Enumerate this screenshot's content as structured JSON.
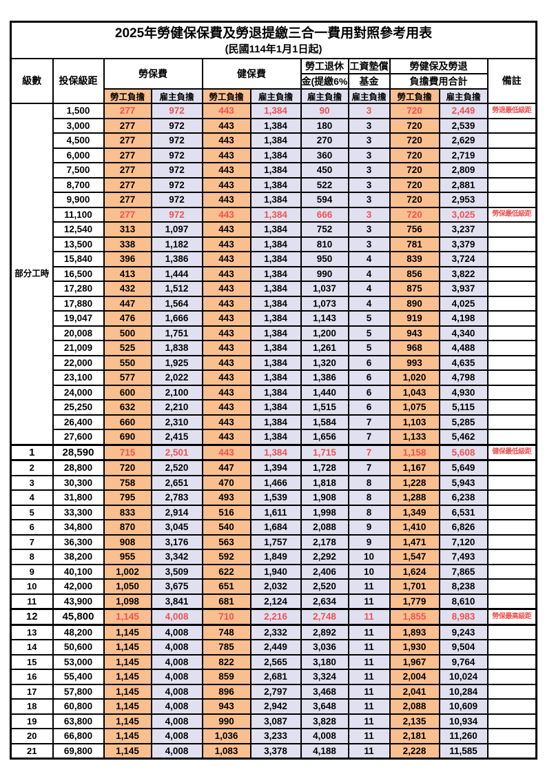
{
  "title": "2025年勞健保保費及勞退提繳三合一費用對照參考用表",
  "subtitle": "(民國114年1月1日起)",
  "columns": {
    "level": "級數",
    "bracket": "投保級距",
    "labor_fee": "勞保費",
    "health_fee": "健保費",
    "pension": [
      "勞工退休",
      "金(提繳6%)"
    ],
    "wage_fund": [
      "工資墊償",
      "基金"
    ],
    "total": [
      "勞健保及勞退",
      "負擔費用合計"
    ],
    "remark": "備註",
    "worker_share": "勞工負擔",
    "employer_share": "雇主負擔"
  },
  "part_time": {
    "label": "部分工時",
    "rowspan": 23
  },
  "colors": {
    "worker_bg": "#FABF8F",
    "employer_bg": "#E0E0F0",
    "highlight_red": "#EE5351"
  },
  "rows": [
    {
      "level": "",
      "bracket": "1,500",
      "values": [
        "277",
        "972",
        "443",
        "1,384",
        "90",
        "3",
        "720",
        "2,449"
      ],
      "remark": "勞退最低級距",
      "red": true,
      "big": false
    },
    {
      "level": "",
      "bracket": "3,000",
      "values": [
        "277",
        "972",
        "443",
        "1,384",
        "180",
        "3",
        "720",
        "2,539"
      ],
      "remark": "",
      "red": false,
      "big": false
    },
    {
      "level": "",
      "bracket": "4,500",
      "values": [
        "277",
        "972",
        "443",
        "1,384",
        "270",
        "3",
        "720",
        "2,629"
      ],
      "remark": "",
      "red": false,
      "big": false
    },
    {
      "level": "",
      "bracket": "6,000",
      "values": [
        "277",
        "972",
        "443",
        "1,384",
        "360",
        "3",
        "720",
        "2,719"
      ],
      "remark": "",
      "red": false,
      "big": false
    },
    {
      "level": "",
      "bracket": "7,500",
      "values": [
        "277",
        "972",
        "443",
        "1,384",
        "450",
        "3",
        "720",
        "2,809"
      ],
      "remark": "",
      "red": false,
      "big": false
    },
    {
      "level": "",
      "bracket": "8,700",
      "values": [
        "277",
        "972",
        "443",
        "1,384",
        "522",
        "3",
        "720",
        "2,881"
      ],
      "remark": "",
      "red": false,
      "big": false
    },
    {
      "level": "",
      "bracket": "9,900",
      "values": [
        "277",
        "972",
        "443",
        "1,384",
        "594",
        "3",
        "720",
        "2,953"
      ],
      "remark": "",
      "red": false,
      "big": false
    },
    {
      "level": "",
      "bracket": "11,100",
      "values": [
        "277",
        "972",
        "443",
        "1,384",
        "666",
        "3",
        "720",
        "3,025"
      ],
      "remark": "勞保最低級距",
      "red": true,
      "big": false
    },
    {
      "level": "",
      "bracket": "12,540",
      "values": [
        "313",
        "1,097",
        "443",
        "1,384",
        "752",
        "3",
        "756",
        "3,237"
      ],
      "remark": "",
      "red": false,
      "big": false
    },
    {
      "level": "",
      "bracket": "13,500",
      "values": [
        "338",
        "1,182",
        "443",
        "1,384",
        "810",
        "3",
        "781",
        "3,379"
      ],
      "remark": "",
      "red": false,
      "big": false
    },
    {
      "level": "",
      "bracket": "15,840",
      "values": [
        "396",
        "1,386",
        "443",
        "1,384",
        "950",
        "4",
        "839",
        "3,724"
      ],
      "remark": "",
      "red": false,
      "big": false
    },
    {
      "level": "",
      "bracket": "16,500",
      "values": [
        "413",
        "1,444",
        "443",
        "1,384",
        "990",
        "4",
        "856",
        "3,822"
      ],
      "remark": "",
      "red": false,
      "big": false
    },
    {
      "level": "",
      "bracket": "17,280",
      "values": [
        "432",
        "1,512",
        "443",
        "1,384",
        "1,037",
        "4",
        "875",
        "3,937"
      ],
      "remark": "",
      "red": false,
      "big": false
    },
    {
      "level": "",
      "bracket": "17,880",
      "values": [
        "447",
        "1,564",
        "443",
        "1,384",
        "1,073",
        "4",
        "890",
        "4,025"
      ],
      "remark": "",
      "red": false,
      "big": false
    },
    {
      "level": "",
      "bracket": "19,047",
      "values": [
        "476",
        "1,666",
        "443",
        "1,384",
        "1,143",
        "5",
        "919",
        "4,198"
      ],
      "remark": "",
      "red": false,
      "big": false
    },
    {
      "level": "",
      "bracket": "20,008",
      "values": [
        "500",
        "1,751",
        "443",
        "1,384",
        "1,200",
        "5",
        "943",
        "4,340"
      ],
      "remark": "",
      "red": false,
      "big": false
    },
    {
      "level": "",
      "bracket": "21,009",
      "values": [
        "525",
        "1,838",
        "443",
        "1,384",
        "1,261",
        "5",
        "968",
        "4,488"
      ],
      "remark": "",
      "red": false,
      "big": false
    },
    {
      "level": "",
      "bracket": "22,000",
      "values": [
        "550",
        "1,925",
        "443",
        "1,384",
        "1,320",
        "6",
        "993",
        "4,635"
      ],
      "remark": "",
      "red": false,
      "big": false
    },
    {
      "level": "",
      "bracket": "23,100",
      "values": [
        "577",
        "2,022",
        "443",
        "1,384",
        "1,386",
        "6",
        "1,020",
        "4,798"
      ],
      "remark": "",
      "red": false,
      "big": false
    },
    {
      "level": "",
      "bracket": "24,000",
      "values": [
        "600",
        "2,100",
        "443",
        "1,384",
        "1,440",
        "6",
        "1,043",
        "4,930"
      ],
      "remark": "",
      "red": false,
      "big": false
    },
    {
      "level": "",
      "bracket": "25,250",
      "values": [
        "632",
        "2,210",
        "443",
        "1,384",
        "1,515",
        "6",
        "1,075",
        "5,115"
      ],
      "remark": "",
      "red": false,
      "big": false
    },
    {
      "level": "",
      "bracket": "26,400",
      "values": [
        "660",
        "2,310",
        "443",
        "1,384",
        "1,584",
        "7",
        "1,103",
        "5,285"
      ],
      "remark": "",
      "red": false,
      "big": false
    },
    {
      "level": "",
      "bracket": "27,600",
      "values": [
        "690",
        "2,415",
        "443",
        "1,384",
        "1,656",
        "7",
        "1,133",
        "5,462"
      ],
      "remark": "",
      "red": false,
      "big": false
    },
    {
      "level": "1",
      "bracket": "28,590",
      "values": [
        "715",
        "2,501",
        "443",
        "1,384",
        "1,715",
        "7",
        "1,158",
        "5,608"
      ],
      "remark": "健保最低級距",
      "red": true,
      "big": true
    },
    {
      "level": "2",
      "bracket": "28,800",
      "values": [
        "720",
        "2,520",
        "447",
        "1,394",
        "1,728",
        "7",
        "1,167",
        "5,649"
      ],
      "remark": "",
      "red": false,
      "big": false
    },
    {
      "level": "3",
      "bracket": "30,300",
      "values": [
        "758",
        "2,651",
        "470",
        "1,466",
        "1,818",
        "8",
        "1,228",
        "5,943"
      ],
      "remark": "",
      "red": false,
      "big": false
    },
    {
      "level": "4",
      "bracket": "31,800",
      "values": [
        "795",
        "2,783",
        "493",
        "1,539",
        "1,908",
        "8",
        "1,288",
        "6,238"
      ],
      "remark": "",
      "red": false,
      "big": false
    },
    {
      "level": "5",
      "bracket": "33,300",
      "values": [
        "833",
        "2,914",
        "516",
        "1,611",
        "1,998",
        "8",
        "1,349",
        "6,531"
      ],
      "remark": "",
      "red": false,
      "big": false
    },
    {
      "level": "6",
      "bracket": "34,800",
      "values": [
        "870",
        "3,045",
        "540",
        "1,684",
        "2,088",
        "9",
        "1,410",
        "6,826"
      ],
      "remark": "",
      "red": false,
      "big": false
    },
    {
      "level": "7",
      "bracket": "36,300",
      "values": [
        "908",
        "3,176",
        "563",
        "1,757",
        "2,178",
        "9",
        "1,471",
        "7,120"
      ],
      "remark": "",
      "red": false,
      "big": false
    },
    {
      "level": "8",
      "bracket": "38,200",
      "values": [
        "955",
        "3,342",
        "592",
        "1,849",
        "2,292",
        "10",
        "1,547",
        "7,493"
      ],
      "remark": "",
      "red": false,
      "big": false
    },
    {
      "level": "9",
      "bracket": "40,100",
      "values": [
        "1,002",
        "3,509",
        "622",
        "1,940",
        "2,406",
        "10",
        "1,624",
        "7,865"
      ],
      "remark": "",
      "red": false,
      "big": false
    },
    {
      "level": "10",
      "bracket": "42,000",
      "values": [
        "1,050",
        "3,675",
        "651",
        "2,032",
        "2,520",
        "11",
        "1,701",
        "8,238"
      ],
      "remark": "",
      "red": false,
      "big": false
    },
    {
      "level": "11",
      "bracket": "43,900",
      "values": [
        "1,098",
        "3,841",
        "681",
        "2,124",
        "2,634",
        "11",
        "1,779",
        "8,610"
      ],
      "remark": "",
      "red": false,
      "big": false
    },
    {
      "level": "12",
      "bracket": "45,800",
      "values": [
        "1,145",
        "4,008",
        "710",
        "2,216",
        "2,748",
        "11",
        "1,855",
        "8,983"
      ],
      "remark": "勞保最高級距",
      "red": true,
      "big": true
    },
    {
      "level": "13",
      "bracket": "48,200",
      "values": [
        "1,145",
        "4,008",
        "748",
        "2,332",
        "2,892",
        "11",
        "1,893",
        "9,243"
      ],
      "remark": "",
      "red": false,
      "big": false
    },
    {
      "level": "14",
      "bracket": "50,600",
      "values": [
        "1,145",
        "4,008",
        "785",
        "2,449",
        "3,036",
        "11",
        "1,930",
        "9,504"
      ],
      "remark": "",
      "red": false,
      "big": false
    },
    {
      "level": "15",
      "bracket": "53,000",
      "values": [
        "1,145",
        "4,008",
        "822",
        "2,565",
        "3,180",
        "11",
        "1,967",
        "9,764"
      ],
      "remark": "",
      "red": false,
      "big": false
    },
    {
      "level": "16",
      "bracket": "55,400",
      "values": [
        "1,145",
        "4,008",
        "859",
        "2,681",
        "3,324",
        "11",
        "2,004",
        "10,024"
      ],
      "remark": "",
      "red": false,
      "big": false
    },
    {
      "level": "17",
      "bracket": "57,800",
      "values": [
        "1,145",
        "4,008",
        "896",
        "2,797",
        "3,468",
        "11",
        "2,041",
        "10,284"
      ],
      "remark": "",
      "red": false,
      "big": false
    },
    {
      "level": "18",
      "bracket": "60,800",
      "values": [
        "1,145",
        "4,008",
        "943",
        "2,942",
        "3,648",
        "11",
        "2,088",
        "10,609"
      ],
      "remark": "",
      "red": false,
      "big": false
    },
    {
      "level": "19",
      "bracket": "63,800",
      "values": [
        "1,145",
        "4,008",
        "990",
        "3,087",
        "3,828",
        "11",
        "2,135",
        "10,934"
      ],
      "remark": "",
      "red": false,
      "big": false
    },
    {
      "level": "20",
      "bracket": "66,800",
      "values": [
        "1,145",
        "4,008",
        "1,036",
        "3,233",
        "4,008",
        "11",
        "2,181",
        "11,260"
      ],
      "remark": "",
      "red": false,
      "big": false
    },
    {
      "level": "21",
      "bracket": "69,800",
      "values": [
        "1,145",
        "4,008",
        "1,083",
        "3,378",
        "4,188",
        "11",
        "2,228",
        "11,585"
      ],
      "remark": "",
      "red": false,
      "big": false
    }
  ]
}
